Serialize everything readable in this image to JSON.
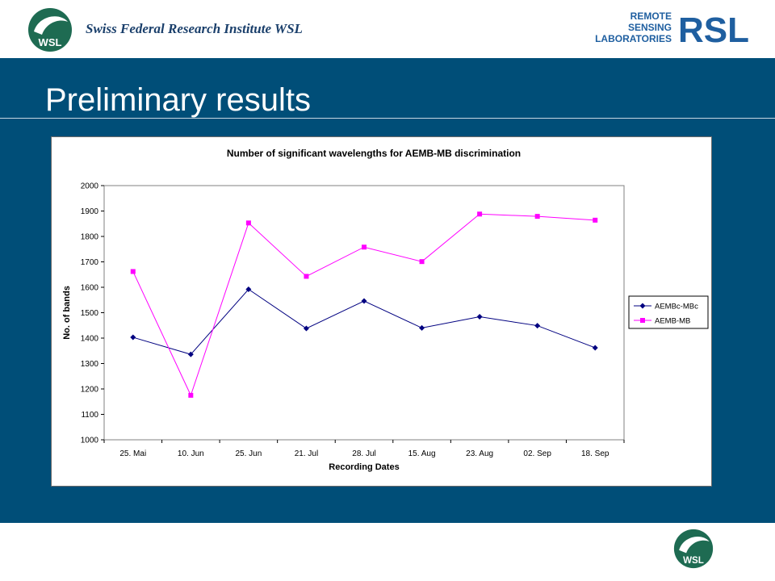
{
  "header": {
    "institute": "Swiss Federal  Research Institute WSL",
    "wsl_logo_text": "WSL",
    "rsl_logo": {
      "line1": "REMOTE",
      "line2": "SENSING",
      "line3": "LABORATORIES",
      "mark": "RSL"
    }
  },
  "slide": {
    "title": "Preliminary results"
  },
  "footer": {
    "wsl_logo_text": "WSL"
  },
  "colors": {
    "band": "#004e78",
    "series1": "#000080",
    "series2": "#ff00ff"
  },
  "chart_data": {
    "type": "line",
    "title": "Number of significant wavelengths for AEMB-MB discrimination",
    "xlabel": "Recording Dates",
    "ylabel": "No. of bands",
    "categories": [
      "25. Mai",
      "10. Jun",
      "25. Jun",
      "21. Jul",
      "28. Jul",
      "15. Aug",
      "23. Aug",
      "02. Sep",
      "18. Sep"
    ],
    "ylim": [
      1000,
      2000
    ],
    "yticks": [
      "1000",
      "1100",
      "1200",
      "1300",
      "1400",
      "1500",
      "1600",
      "1700",
      "1800",
      "1900",
      "2000"
    ],
    "legend_position": "right",
    "grid": false,
    "series": [
      {
        "name": "AEMBc-MBc",
        "color": "#000080",
        "marker": "diamond",
        "values": [
          1403,
          1336,
          1592,
          1438,
          1546,
          1440,
          1484,
          1449,
          1362
        ]
      },
      {
        "name": "AEMB-MB",
        "color": "#ff00ff",
        "marker": "square",
        "values": [
          1662,
          1175,
          1853,
          1643,
          1758,
          1701,
          1888,
          1879,
          1864
        ]
      }
    ]
  }
}
